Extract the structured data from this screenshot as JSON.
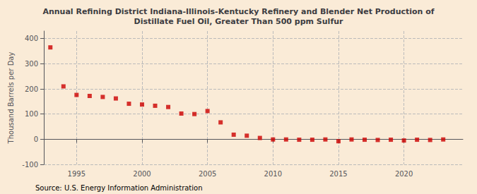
{
  "chart_data": {
    "type": "scatter",
    "title": "Annual Refining District Indiana-Illinois-Kentucky Refinery and Blender Net Production of\nDistillate Fuel Oil, Greater Than 500 ppm Sulfur",
    "ylabel": "Thousand Barrels per Day",
    "annotations": [
      "Source: U.S. Energy Information Administration"
    ],
    "x": [
      1993,
      1994,
      1995,
      1996,
      1997,
      1998,
      1999,
      2000,
      2001,
      2002,
      2003,
      2004,
      2005,
      2006,
      2007,
      2008,
      2009,
      2010,
      2011,
      2012,
      2013,
      2014,
      2015,
      2016,
      2017,
      2018,
      2019,
      2020,
      2021,
      2022,
      2023
    ],
    "values": [
      365,
      210,
      176,
      172,
      168,
      162,
      141,
      138,
      133,
      128,
      102,
      100,
      112,
      67,
      18,
      14,
      5,
      -1,
      -1,
      -2,
      -2,
      -1,
      -8,
      -1,
      -2,
      -3,
      -2,
      -5,
      -2,
      -3,
      -1
    ],
    "xlim": [
      1992.5,
      2024.5
    ],
    "xticks": [
      1995,
      2000,
      2005,
      2010,
      2015,
      2020
    ],
    "ylim": [
      -100,
      430
    ],
    "yticks": [
      -100,
      0,
      100,
      200,
      300,
      400
    ],
    "color": "#cc0000",
    "marker": "square",
    "grid": true
  }
}
